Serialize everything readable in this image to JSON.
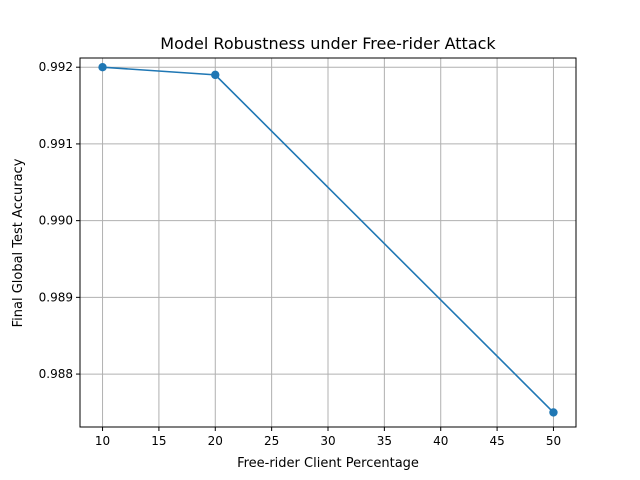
{
  "chart_data": {
    "type": "line",
    "title": "Model Robustness under Free-rider Attack",
    "xlabel": "Free-rider Client Percentage",
    "ylabel": "Final Global Test Accuracy",
    "x": [
      10,
      20,
      50
    ],
    "series": [
      {
        "values": [
          0.992,
          0.9919,
          0.9875
        ],
        "color": "#1f77b4",
        "marker": "circle"
      }
    ],
    "xlim": [
      8,
      52
    ],
    "ylim": [
      0.98731,
      0.99212
    ],
    "xticks": [
      10,
      15,
      20,
      25,
      30,
      35,
      40,
      45,
      50
    ],
    "xtick_labels": [
      "10",
      "15",
      "20",
      "25",
      "30",
      "35",
      "40",
      "45",
      "50"
    ],
    "yticks": [
      0.988,
      0.989,
      0.99,
      0.991,
      0.992
    ],
    "ytick_labels": [
      "0.988",
      "0.989",
      "0.990",
      "0.991",
      "0.992"
    ],
    "grid": true,
    "grid_color": "#b0b0b0"
  }
}
